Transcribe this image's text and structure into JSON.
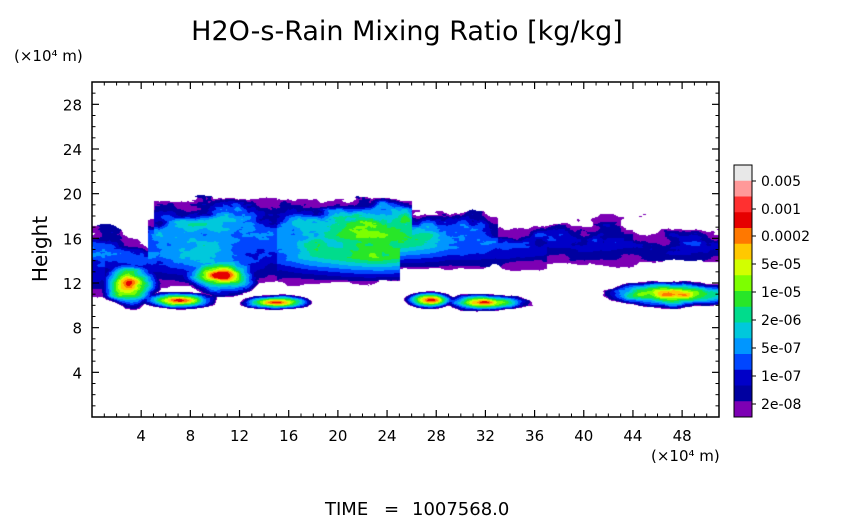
{
  "chart_data": {
    "type": "heatmap",
    "title": "H2O-s-Rain Mixing Ratio [kg/kg]",
    "ylabel": "Height",
    "y_unit": "(×10⁴ m)",
    "x_unit": "(×10⁴ m)",
    "xlim": [
      0,
      51
    ],
    "ylim": [
      0,
      30
    ],
    "x_ticks": [
      4,
      8,
      12,
      16,
      20,
      24,
      28,
      32,
      36,
      40,
      44,
      48
    ],
    "y_ticks": [
      4,
      8,
      12,
      16,
      20,
      24,
      28
    ],
    "colorbar": {
      "scale": "log",
      "labels": [
        "0.005",
        "0.001",
        "0.0002",
        "5e-05",
        "1e-05",
        "2e-06",
        "5e-07",
        "1e-07",
        "2e-08"
      ],
      "colors": [
        "#e8e8e8",
        "#ff9999",
        "#ff3030",
        "#e60000",
        "#ff7800",
        "#ffc800",
        "#d2ff00",
        "#7dff00",
        "#28e628",
        "#00dc8c",
        "#00c8dc",
        "#0096ff",
        "#0046ff",
        "#0000c8",
        "#0000a0",
        "#7d00b4"
      ]
    },
    "regions": [
      {
        "type": "main_cloud",
        "x_range": [
          0,
          51
        ],
        "y_range": [
          12,
          19.5
        ],
        "max_level": 8
      },
      {
        "type": "rain_cell",
        "x": 3,
        "y": 12,
        "max_level": 3
      },
      {
        "type": "rain_cell",
        "x": 7,
        "y": 10.5,
        "max_level": 3
      },
      {
        "type": "rain_cell",
        "x": 10.5,
        "y": 12.7,
        "max_level": 3
      },
      {
        "type": "rain_cell",
        "x": 15,
        "y": 10.3,
        "max_level": 3
      },
      {
        "type": "rain_cell",
        "x": 27.5,
        "y": 10.5,
        "max_level": 3
      },
      {
        "type": "rain_cell",
        "x": 32,
        "y": 10.3,
        "max_level": 3
      },
      {
        "type": "rain_cell",
        "x": 47,
        "y": 11,
        "max_level": 3
      }
    ]
  },
  "footer": {
    "time_label": "TIME",
    "time_eq": "=",
    "time_value": "1007568.0"
  }
}
